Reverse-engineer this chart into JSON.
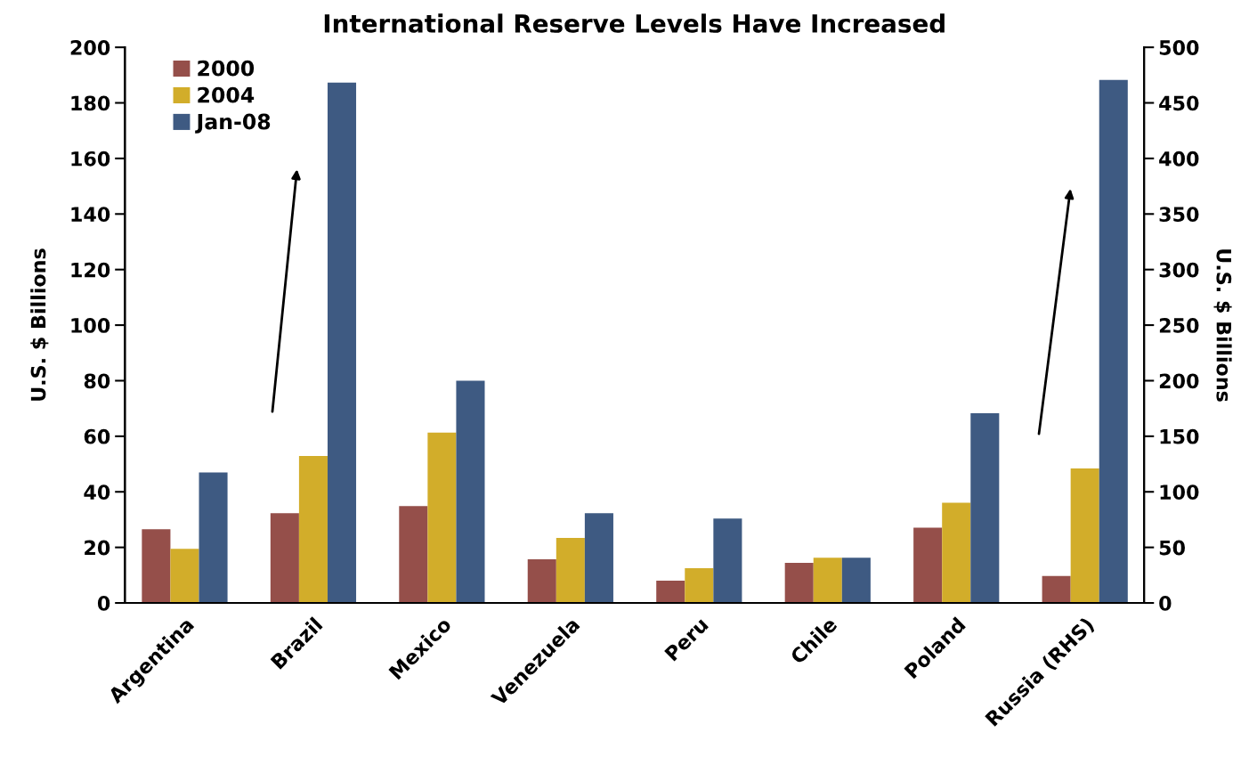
{
  "chart_data": {
    "type": "bar",
    "title": "International Reserve Levels Have Increased",
    "ylabel": "U.S. $ Billions",
    "y2label": "U.S. $ Billions",
    "categories": [
      "Argentina",
      "Brazil",
      "Mexico",
      "Venezuela",
      "Peru",
      "Chile",
      "Poland",
      "Russia (RHS)"
    ],
    "series": [
      {
        "name": "2000",
        "color": "#954f4a",
        "values": [
          26.5,
          32.3,
          34.9,
          15.7,
          8.0,
          14.4,
          27.1,
          null
        ]
      },
      {
        "name": "2004",
        "color": "#d2ad2a",
        "values": [
          19.5,
          52.9,
          61.3,
          23.4,
          12.5,
          16.3,
          36.1,
          null
        ]
      },
      {
        "name": "Jan-08",
        "color": "#3e5a82",
        "values": [
          47,
          187.3,
          80,
          32.3,
          30.4,
          16.3,
          68.3,
          null
        ]
      },
      {
        "color": "#954f4a",
        "axis": "y2",
        "values": [
          null,
          null,
          null,
          null,
          null,
          null,
          null,
          24.3
        ]
      },
      {
        "color": "#d2ad2a",
        "axis": "y2",
        "values": [
          null,
          null,
          null,
          null,
          null,
          null,
          null,
          121
        ]
      },
      {
        "color": "#3e5a82",
        "axis": "y2",
        "values": [
          null,
          null,
          null,
          null,
          null,
          null,
          null,
          470.7
        ]
      }
    ],
    "ylim": [
      0,
      200
    ],
    "yticks": [
      0,
      20,
      40,
      60,
      80,
      100,
      120,
      140,
      160,
      180,
      200
    ],
    "y2lim": [
      0,
      500
    ],
    "y2ticks": [
      0,
      50,
      100,
      150,
      200,
      250,
      300,
      350,
      400,
      450,
      500
    ],
    "grid": false,
    "legend": "top left"
  }
}
